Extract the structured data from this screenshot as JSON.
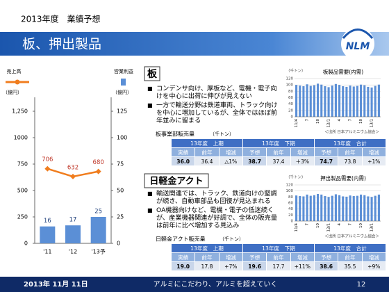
{
  "header": {
    "subtitle": "2013年度　業績予想",
    "title": "板、押出製品",
    "logo": "NLM"
  },
  "chart_data": [
    {
      "type": "combo",
      "categories": [
        "'11",
        "'12",
        "'13予"
      ],
      "series": [
        {
          "name": "売上高",
          "type": "line",
          "color": "#f07d1e",
          "label_color": "#c0392b",
          "values": [
            706,
            632,
            680
          ]
        },
        {
          "name": "営業利益",
          "type": "bar",
          "axis": "y2",
          "color": "#5b8fd6",
          "label_color": "#1f3f7a",
          "values": [
            16,
            17,
            25
          ]
        }
      ],
      "ylim": [
        0,
        1250
      ],
      "yticks": [
        0,
        250,
        500,
        750,
        1000,
        {
          "value": 1250,
          "label": "1,250"
        }
      ],
      "y2lim": [
        0,
        125
      ],
      "y2ticks": [
        0,
        25,
        50,
        75,
        100,
        125
      ],
      "y_label": "（億円）",
      "y2_label": "（億円）"
    },
    {
      "type": "bar",
      "title": "板製品需要(内需)",
      "unit": "（千トン）",
      "source": "＜出所 日本アルミニウム協会＞",
      "categories": [
        "11/4",
        null,
        null,
        "7",
        null,
        null,
        "10",
        null,
        null,
        "12/1",
        null,
        null,
        "4",
        null,
        null,
        "7",
        null,
        null,
        "10",
        null,
        null,
        "13/1",
        null,
        null
      ],
      "values": [
        100,
        98,
        96,
        102,
        97,
        99,
        104,
        101,
        96,
        93,
        98,
        103,
        100,
        96,
        94,
        98,
        95,
        97,
        101,
        99,
        94,
        92,
        97,
        101
      ],
      "color": "#5b8fd6",
      "ylim": [
        0,
        120
      ],
      "yticks": [
        0,
        20,
        40,
        60,
        80,
        100,
        120
      ],
      "grid": true
    },
    {
      "type": "bar",
      "title": "押出製品需要(内需)",
      "unit": "（千トン）",
      "source": "＜出所 日本アルミニウム協会＞",
      "categories": [
        "11/4",
        null,
        null,
        "7",
        null,
        null,
        "10",
        null,
        null,
        "12/1",
        null,
        null,
        "4",
        null,
        null,
        "7",
        null,
        null,
        "10",
        null,
        null,
        "13/1",
        null,
        null
      ],
      "values": [
        85,
        83,
        82,
        88,
        84,
        86,
        90,
        88,
        83,
        80,
        84,
        89,
        86,
        82,
        81,
        85,
        83,
        84,
        88,
        86,
        82,
        80,
        84,
        88
      ],
      "color": "#5b8fd6",
      "ylim": [
        0,
        120
      ],
      "yticks": [
        0,
        20,
        40,
        60,
        80,
        100,
        120
      ],
      "grid": true
    }
  ],
  "sections": [
    {
      "title": "板",
      "bullets": [
        "コンデンサ向け、厚板など、電機・電子向けを中心に出荷に伸びが見えない",
        "一方で輸送分野は鉄道車両、トラック向けを中心に増加しているが、全体ではほぼ前年並みに留まる"
      ]
    },
    {
      "title": "日軽金アクト",
      "bullets": [
        "輸送関連では、トラック、鉄道向けの堅調が続き、自動車部品も回復が見込まれる",
        "OA機器向けなど、電機・電子の低迷続くが、産業機器関連が好調で、全体の販売量は前年に比べ増加する見込み"
      ]
    }
  ],
  "tables": [
    {
      "title": "板事業部販売量",
      "unit": "（千トン）",
      "groups": [
        "13年度　上期",
        "13年度　下期",
        "13年度　合計"
      ],
      "columns": [
        "実績",
        "前年",
        "増減",
        "予想",
        "前年",
        "増減",
        "予想",
        "前年",
        "増減"
      ],
      "rows": [
        [
          "36.0",
          "36.4",
          "△1%",
          "38.7",
          "37.4",
          "＋3%",
          "74.7",
          "73.8",
          "+1%"
        ]
      ]
    },
    {
      "title": "日軽金アクト販売量",
      "unit": "（千トン）",
      "groups": [
        "13年度　上期",
        "13年度　下期",
        "13年度　合計"
      ],
      "columns": [
        "実績",
        "前年",
        "増減",
        "予想",
        "前年",
        "増減",
        "予想",
        "前年",
        "増減"
      ],
      "rows": [
        [
          "19.0",
          "17.8",
          "+7%",
          "19.6",
          "17.7",
          "+11%",
          "38.6",
          "35.5",
          "+9%"
        ]
      ]
    }
  ],
  "footer": {
    "date": "2013年 11月 11日",
    "slogan": "アルミにこだわり、アルミを超えていく",
    "page": "12"
  }
}
